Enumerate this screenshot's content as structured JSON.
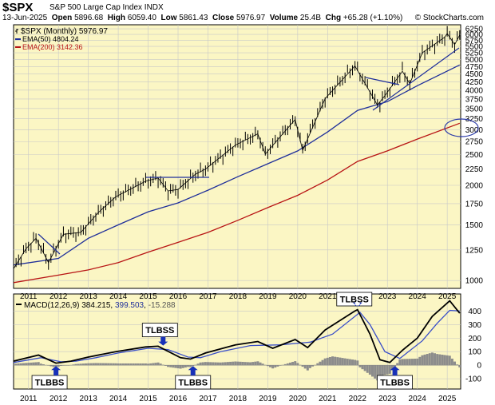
{
  "header": {
    "symbol": "$SPX",
    "name": "S&P 500 Large Cap Index",
    "exchange": "INDX",
    "date": "13-Jun-2025",
    "open_label": "Open",
    "open": "5896.68",
    "high_label": "High",
    "high": "6059.40",
    "low_label": "Low",
    "low": "5861.43",
    "close_label": "Close",
    "close": "5976.97",
    "volume_label": "Volume",
    "volume": "25.4B",
    "chg_label": "Chg",
    "chg": "+65.28 (+1.10%)",
    "credit": "© StockCharts.com"
  },
  "colors": {
    "panel_bg": "#fbf6c4",
    "price": "#000000",
    "ema50": "#1f2f9a",
    "ema200": "#b81414",
    "macd": "#000000",
    "signal": "#3a4fc8",
    "histogram": "#8c8c8c",
    "annotation": "#1f2f9a",
    "marker": "#1730b8"
  },
  "chart_data": [
    {
      "type": "line",
      "panel": "price",
      "scale": "log",
      "frequency": "monthly",
      "ylim": [
        950,
        6400
      ],
      "y_ticks": [
        1000,
        1250,
        1500,
        1750,
        2000,
        2250,
        2500,
        2750,
        3000,
        3250,
        3500,
        3750,
        4000,
        4250,
        4500,
        4750,
        5000,
        5250,
        5500,
        5750,
        6000,
        6250
      ],
      "x_ticks": [
        "2011",
        "2012",
        "2013",
        "2014",
        "2015",
        "2016",
        "2017",
        "2018",
        "2019",
        "2020",
        "2021",
        "2022",
        "2023",
        "2024",
        "2025"
      ],
      "legend_placement": "top-left",
      "series": [
        {
          "name": "$SPX (Monthly)",
          "value": "5976.97",
          "points": [
            [
              "2010-07",
              1090
            ],
            [
              "2010-12",
              1260
            ],
            [
              "2011-04",
              1360
            ],
            [
              "2011-09",
              1140
            ],
            [
              "2012-03",
              1400
            ],
            [
              "2012-10",
              1420
            ],
            [
              "2013-05",
              1640
            ],
            [
              "2013-12",
              1840
            ],
            [
              "2014-12",
              2060
            ],
            [
              "2015-05",
              2110
            ],
            [
              "2015-09",
              1920
            ],
            [
              "2016-01",
              1940
            ],
            [
              "2016-08",
              2170
            ],
            [
              "2016-12",
              2250
            ],
            [
              "2017-12",
              2680
            ],
            [
              "2018-09",
              2910
            ],
            [
              "2018-12",
              2510
            ],
            [
              "2019-12",
              3230
            ],
            [
              "2020-03",
              2580
            ],
            [
              "2020-12",
              3760
            ],
            [
              "2021-12",
              4770
            ],
            [
              "2022-09",
              3590
            ],
            [
              "2022-12",
              3840
            ],
            [
              "2023-07",
              4590
            ],
            [
              "2023-10",
              4190
            ],
            [
              "2024-03",
              5250
            ],
            [
              "2024-12",
              5880
            ],
            [
              "2025-01",
              6040
            ],
            [
              "2025-04",
              5570
            ],
            [
              "2025-06",
              5977
            ]
          ]
        },
        {
          "name": "EMA(50)",
          "value": "4804.24",
          "points": [
            [
              "2010-07",
              1120
            ],
            [
              "2012-01",
              1175
            ],
            [
              "2013-01",
              1360
            ],
            [
              "2014-01",
              1500
            ],
            [
              "2015-01",
              1650
            ],
            [
              "2016-01",
              1760
            ],
            [
              "2017-01",
              1930
            ],
            [
              "2018-01",
              2130
            ],
            [
              "2019-01",
              2340
            ],
            [
              "2020-01",
              2570
            ],
            [
              "2021-01",
              2950
            ],
            [
              "2022-01",
              3450
            ],
            [
              "2023-01",
              3680
            ],
            [
              "2024-01",
              4130
            ],
            [
              "2025-06",
              4804
            ]
          ]
        },
        {
          "name": "EMA(200)",
          "value": "3142.36",
          "points": [
            [
              "2010-07",
              985
            ],
            [
              "2012-01",
              1040
            ],
            [
              "2013-01",
              1080
            ],
            [
              "2014-01",
              1140
            ],
            [
              "2015-01",
              1230
            ],
            [
              "2016-01",
              1320
            ],
            [
              "2017-01",
              1420
            ],
            [
              "2018-01",
              1550
            ],
            [
              "2019-01",
              1700
            ],
            [
              "2020-01",
              1860
            ],
            [
              "2021-01",
              2080
            ],
            [
              "2022-01",
              2380
            ],
            [
              "2023-01",
              2570
            ],
            [
              "2024-01",
              2800
            ],
            [
              "2025-06",
              3142
            ]
          ]
        }
      ]
    },
    {
      "type": "line",
      "panel": "indicator",
      "indicator": "MACD(12,26,9)",
      "values": [
        "384.215",
        "399.503",
        "-15.288"
      ],
      "ylim": [
        -170,
        520
      ],
      "y_ticks": [
        -100,
        0,
        100,
        200,
        300,
        400
      ],
      "x_ticks": [
        "2011",
        "2012",
        "2013",
        "2014",
        "2015",
        "2016",
        "2017",
        "2018",
        "2019",
        "2020",
        "2021",
        "2022",
        "2023",
        "2024",
        "2025"
      ],
      "series": [
        {
          "name": "MACD",
          "points": [
            [
              "2010-07",
              30
            ],
            [
              "2011-05",
              75
            ],
            [
              "2011-12",
              15
            ],
            [
              "2012-06",
              30
            ],
            [
              "2013-01",
              60
            ],
            [
              "2013-12",
              100
            ],
            [
              "2014-12",
              135
            ],
            [
              "2015-05",
              140
            ],
            [
              "2016-02",
              55
            ],
            [
              "2016-06",
              45
            ],
            [
              "2016-12",
              90
            ],
            [
              "2017-12",
              150
            ],
            [
              "2018-09",
              175
            ],
            [
              "2019-03",
              125
            ],
            [
              "2019-12",
              190
            ],
            [
              "2020-05",
              130
            ],
            [
              "2020-12",
              260
            ],
            [
              "2021-12",
              400
            ],
            [
              "2022-01",
              410
            ],
            [
              "2022-06",
              230
            ],
            [
              "2022-10",
              40
            ],
            [
              "2023-02",
              20
            ],
            [
              "2023-07",
              110
            ],
            [
              "2024-01",
              200
            ],
            [
              "2024-07",
              360
            ],
            [
              "2025-02",
              475
            ],
            [
              "2025-06",
              384
            ]
          ]
        },
        {
          "name": "Signal",
          "points": [
            [
              "2010-07",
              20
            ],
            [
              "2011-06",
              55
            ],
            [
              "2012-02",
              25
            ],
            [
              "2012-08",
              30
            ],
            [
              "2013-04",
              55
            ],
            [
              "2014-01",
              90
            ],
            [
              "2015-01",
              125
            ],
            [
              "2015-09",
              115
            ],
            [
              "2016-05",
              60
            ],
            [
              "2016-10",
              55
            ],
            [
              "2017-06",
              100
            ],
            [
              "2018-06",
              145
            ],
            [
              "2019-06",
              150
            ],
            [
              "2020-06",
              170
            ],
            [
              "2021-03",
              230
            ],
            [
              "2022-02",
              390
            ],
            [
              "2022-06",
              300
            ],
            [
              "2022-12",
              100
            ],
            [
              "2023-06",
              50
            ],
            [
              "2024-03",
              180
            ],
            [
              "2024-09",
              310
            ],
            [
              "2025-02",
              405
            ],
            [
              "2025-06",
              400
            ]
          ]
        }
      ]
    }
  ],
  "annotations": [
    {
      "panel": "indicator",
      "label": "TLBBS",
      "date": "2011-12",
      "placement": "below"
    },
    {
      "panel": "indicator",
      "label": "TLBSS",
      "date": "2015-07",
      "placement": "above"
    },
    {
      "panel": "indicator",
      "label": "TLBBS",
      "date": "2016-07",
      "placement": "below"
    },
    {
      "panel": "indicator",
      "label": "TLBSS",
      "date": "2022-01",
      "placement": "above"
    },
    {
      "panel": "indicator",
      "label": "TLBBS",
      "date": "2023-04",
      "placement": "below"
    }
  ]
}
